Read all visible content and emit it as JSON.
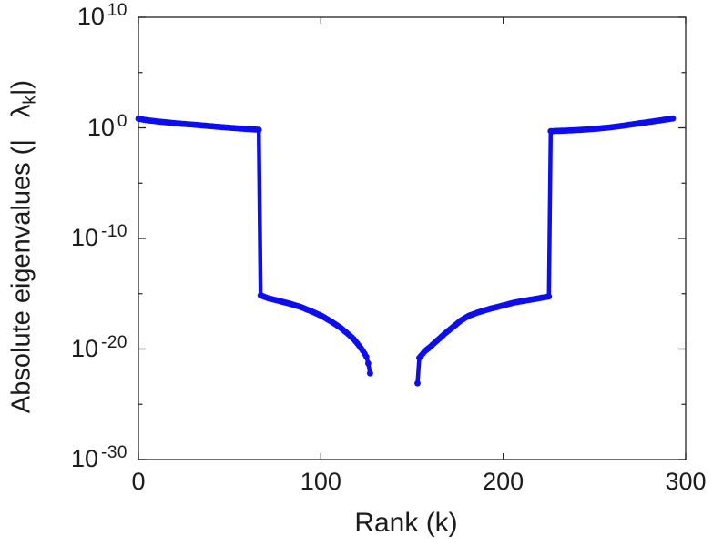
{
  "chart_data": {
    "type": "line",
    "title": "",
    "xlabel": "Rank (k)",
    "ylabel_parts": {
      "prefix": "Absolute eigenvalues (|",
      "symbol": "λ",
      "subscript": "k",
      "suffix": "|)"
    },
    "xlim": [
      0,
      300
    ],
    "ylim_exp": [
      -30,
      10
    ],
    "x_scale": "linear",
    "y_scale": "log10",
    "grid": false,
    "legend": "none",
    "box": true,
    "tick_direction": "in",
    "x_ticks": [
      {
        "value": 0,
        "label": "0"
      },
      {
        "value": 100,
        "label": "100"
      },
      {
        "value": 200,
        "label": "200"
      },
      {
        "value": 300,
        "label": "300"
      }
    ],
    "y_ticks": [
      {
        "exp": 10,
        "base": "10",
        "exp_label": "10"
      },
      {
        "exp": 0,
        "base": "10",
        "exp_label": "0"
      },
      {
        "exp": -10,
        "base": "10",
        "exp_label": "-10"
      },
      {
        "exp": -20,
        "base": "10",
        "exp_label": "-20"
      },
      {
        "exp": -30,
        "base": "10",
        "exp_label": "-30"
      }
    ],
    "y_minor_tick_exps": [
      5,
      -5,
      -15,
      -25
    ],
    "line_color": "#0d0df0",
    "axis_color": "#222222",
    "marker": "dot",
    "series": [
      {
        "name": "absolute eigenvalues |lambda_k| vs rank k (log10 exponents)",
        "point_format": [
          "k",
          "log10_of_abs_eigenvalue"
        ],
        "interpolation": "linear-at-integer-k",
        "segments": [
          {
            "name": "left-branch-k0-127",
            "points": [
              [
                0,
                0.82
              ],
              [
                5,
                0.68
              ],
              [
                11,
                0.57
              ],
              [
                18,
                0.45
              ],
              [
                25,
                0.35
              ],
              [
                32,
                0.26
              ],
              [
                39,
                0.16
              ],
              [
                46,
                0.06
              ],
              [
                53,
                -0.03
              ],
              [
                59,
                -0.1
              ],
              [
                64,
                -0.15
              ],
              [
                66,
                -0.18
              ],
              [
                67,
                -15.15
              ],
              [
                71,
                -15.4
              ],
              [
                77,
                -15.65
              ],
              [
                83,
                -15.9
              ],
              [
                89,
                -16.2
              ],
              [
                95,
                -16.6
              ],
              [
                101,
                -17.05
              ],
              [
                106,
                -17.55
              ],
              [
                111,
                -18.1
              ],
              [
                115,
                -18.65
              ],
              [
                118,
                -19.1
              ],
              [
                121,
                -19.7
              ],
              [
                123,
                -20.15
              ],
              [
                125,
                -20.7
              ],
              [
                126,
                -21.3
              ],
              [
                127,
                -22.2
              ]
            ]
          },
          {
            "name": "right-branch-k153-293",
            "points": [
              [
                153,
                -23.1
              ],
              [
                154,
                -20.8
              ],
              [
                157,
                -20.2
              ],
              [
                160,
                -19.8
              ],
              [
                164,
                -19.2
              ],
              [
                168,
                -18.6
              ],
              [
                171,
                -18.2
              ],
              [
                174,
                -17.8
              ],
              [
                177,
                -17.4
              ],
              [
                181,
                -17.0
              ],
              [
                186,
                -16.7
              ],
              [
                192,
                -16.4
              ],
              [
                199,
                -16.1
              ],
              [
                206,
                -15.8
              ],
              [
                213,
                -15.6
              ],
              [
                220,
                -15.4
              ],
              [
                225,
                -15.25
              ],
              [
                226,
                -0.3
              ],
              [
                235,
                -0.25
              ],
              [
                243,
                -0.18
              ],
              [
                251,
                -0.08
              ],
              [
                259,
                0.05
              ],
              [
                267,
                0.22
              ],
              [
                275,
                0.42
              ],
              [
                283,
                0.6
              ],
              [
                289,
                0.75
              ],
              [
                293,
                0.85
              ]
            ]
          }
        ]
      }
    ]
  }
}
